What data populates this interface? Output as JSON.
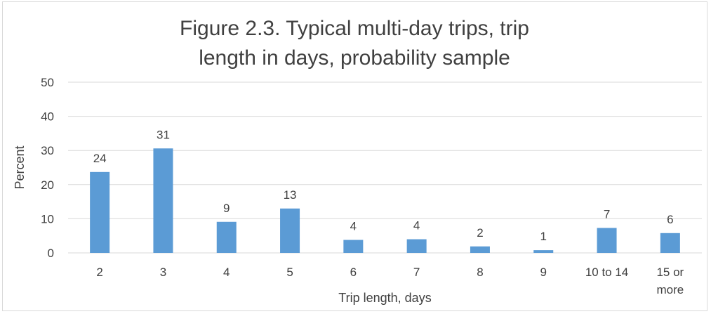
{
  "chart_data": {
    "type": "bar",
    "title": "Figure 2.3.  Typical multi-day trips, trip length in days, probability sample",
    "xlabel": "Trip length, days",
    "ylabel": "Percent",
    "categories": [
      "2",
      "3",
      "4",
      "5",
      "6",
      "7",
      "8",
      "9",
      "10 to 14",
      "15 or more"
    ],
    "category_lines": [
      [
        "2"
      ],
      [
        "3"
      ],
      [
        "4"
      ],
      [
        "5"
      ],
      [
        "6"
      ],
      [
        "7"
      ],
      [
        "8"
      ],
      [
        "9"
      ],
      [
        "10 to 14"
      ],
      [
        "15 or",
        "more"
      ]
    ],
    "values": [
      23.7,
      30.6,
      9.1,
      13.0,
      3.8,
      4.0,
      1.9,
      0.8,
      7.3,
      5.8
    ],
    "data_labels": [
      "24",
      "31",
      "9",
      "13",
      "4",
      "4",
      "2",
      "1",
      "7",
      "6"
    ],
    "ylim": [
      0,
      50
    ],
    "yticks": [
      0,
      10,
      20,
      30,
      40,
      50
    ],
    "grid": true,
    "legend": "none",
    "colors": {
      "bar": "#5b9bd5",
      "grid": "#d9d9d9",
      "text": "#404040",
      "frame": "#d9d9d9"
    }
  }
}
